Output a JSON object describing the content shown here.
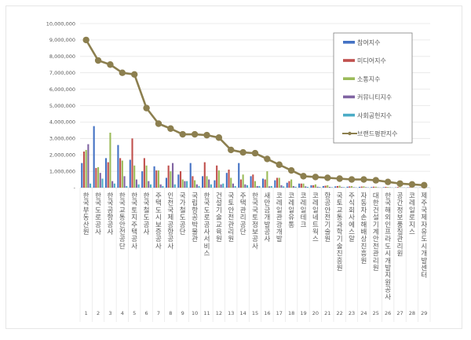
{
  "chart_data": {
    "type": "bar+line",
    "title": "",
    "xlabel": "",
    "ylabel": "",
    "ylim": [
      0,
      10000000
    ],
    "yticks": [
      "-",
      "1,000,000",
      "2,000,000",
      "3,000,000",
      "4,000,000",
      "5,000,000",
      "6,000,000",
      "7,000,000",
      "8,000,000",
      "9,000,000",
      "10,000,000"
    ],
    "grid": true,
    "legend_position": "right-top",
    "ranks": [
      1,
      2,
      3,
      4,
      5,
      6,
      7,
      8,
      9,
      10,
      11,
      12,
      13,
      14,
      15,
      16,
      17,
      18,
      19,
      20,
      21,
      22,
      23,
      24,
      25,
      26,
      27,
      28,
      29
    ],
    "categories": [
      "한국부동산원",
      "한국도로공사",
      "한국공항공사",
      "한국교통안전공단",
      "한국토지주택공사",
      "한국철도공사",
      "주택도시보증공사",
      "인천국제공항공사",
      "국가철도공단",
      "국립항공박물관",
      "한국도로공사서비스",
      "건설기술교육원",
      "국토안전관리원",
      "주택관리공단",
      "한국국토정보공사",
      "새만금개발공사",
      "코레일관광개발",
      "코레일유통",
      "코레일테크",
      "코레일네트웍스",
      "항공안전기술원",
      "국토교통과학기술진흥원",
      "주식회사 에스알",
      "자동차손해배상진흥원",
      "대한건설기계안전관리원",
      "한국해외인프라도시개발지원공사",
      "공간정보품질관리원",
      "코레일로지스",
      "제주국제자유도시개발센터"
    ],
    "series": [
      {
        "name": "참여지수",
        "type": "bar",
        "color": "#4472c4",
        "values": [
          1500000,
          3750000,
          1800000,
          2600000,
          1700000,
          1000000,
          1300000,
          600000,
          800000,
          1500000,
          700000,
          450000,
          900000,
          1500000,
          700000,
          550000,
          450000,
          300000,
          250000,
          150000,
          100000,
          80000,
          60000,
          50000,
          40000,
          30000,
          20000,
          20000,
          10000
        ]
      },
      {
        "name": "미디어지수",
        "type": "bar",
        "color": "#c0504d",
        "values": [
          2200000,
          1200000,
          1550000,
          1800000,
          3000000,
          1800000,
          1050000,
          1350000,
          1000000,
          700000,
          1550000,
          1350000,
          1100000,
          500000,
          800000,
          500000,
          600000,
          400000,
          250000,
          150000,
          120000,
          100000,
          80000,
          70000,
          60000,
          50000,
          40000,
          30000,
          20000
        ]
      },
      {
        "name": "소통지수",
        "type": "bar",
        "color": "#9bbb59",
        "values": [
          2300000,
          1250000,
          3350000,
          1650000,
          1350000,
          1350000,
          1050000,
          1000000,
          500000,
          450000,
          700000,
          1050000,
          600000,
          800000,
          400000,
          1000000,
          600000,
          500000,
          250000,
          200000,
          150000,
          120000,
          100000,
          80000,
          60000,
          40000,
          30000,
          20000,
          10000
        ]
      },
      {
        "name": "커뮤니티지수",
        "type": "bar",
        "color": "#8064a2",
        "values": [
          2650000,
          900000,
          400000,
          700000,
          500000,
          400000,
          200000,
          1500000,
          400000,
          200000,
          500000,
          200000,
          250000,
          200000,
          100000,
          80000,
          150000,
          100000,
          80000,
          60000,
          50000,
          40000,
          30000,
          30000,
          20000,
          20000,
          10000,
          10000,
          10000
        ]
      },
      {
        "name": "사회공헌지수",
        "type": "bar",
        "color": "#4bacc6",
        "values": [
          250000,
          550000,
          250000,
          100000,
          200000,
          200000,
          100000,
          200000,
          400000,
          100000,
          200000,
          250000,
          100000,
          150000,
          100000,
          100000,
          80000,
          60000,
          50000,
          40000,
          30000,
          30000,
          20000,
          20000,
          10000,
          10000,
          10000,
          10000,
          10000
        ]
      },
      {
        "name": "브랜드평판지수",
        "type": "line",
        "color": "#8c7f4f",
        "values": [
          9000000,
          7750000,
          7500000,
          7000000,
          6900000,
          4850000,
          3900000,
          3600000,
          3250000,
          3250000,
          3200000,
          3050000,
          2300000,
          2150000,
          2100000,
          1750000,
          1400000,
          1050000,
          700000,
          650000,
          600000,
          550000,
          500000,
          500000,
          450000,
          350000,
          250000,
          200000,
          150000
        ]
      }
    ]
  }
}
